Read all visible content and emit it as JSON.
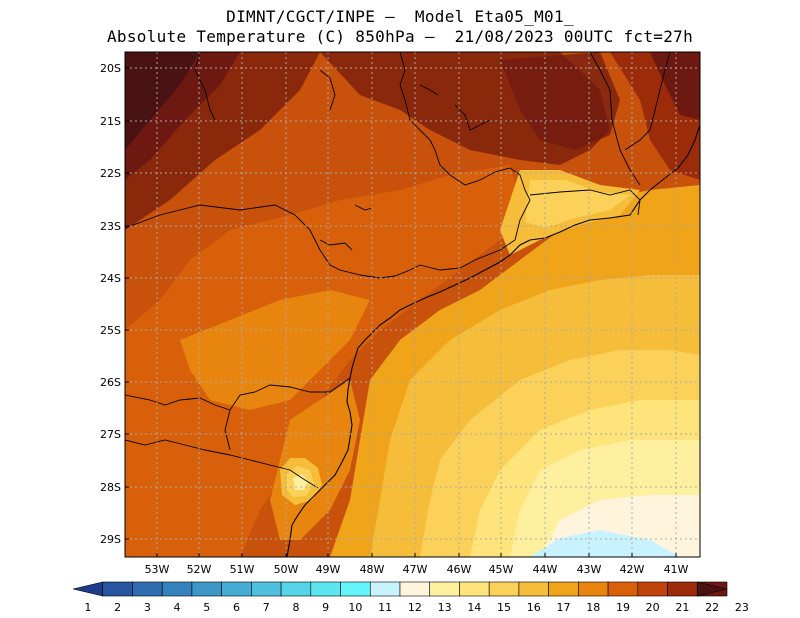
{
  "header": {
    "line1": "DIMNT/CGCT/INPE –  Model Eta05_M01_",
    "line2": "Absolute Temperature (C) 850hPa –  21/08/2023 00UTC fct=27h"
  },
  "axes": {
    "lat_labels": [
      "20S",
      "21S",
      "22S",
      "23S",
      "24S",
      "25S",
      "26S",
      "27S",
      "28S",
      "29S"
    ],
    "lon_labels": [
      "53W",
      "52W",
      "51W",
      "50W",
      "49W",
      "48W",
      "47W",
      "46W",
      "45W",
      "44W",
      "43W",
      "42W",
      "41W"
    ]
  },
  "colorbar": {
    "labels": [
      "1",
      "2",
      "3",
      "4",
      "5",
      "6",
      "7",
      "8",
      "9",
      "10",
      "11",
      "12",
      "13",
      "14",
      "15",
      "16",
      "17",
      "18",
      "19",
      "20",
      "21",
      "22",
      "23"
    ],
    "colors": [
      "#1e3c8c",
      "#27559f",
      "#2f6cb0",
      "#3682be",
      "#3d97c9",
      "#45acd3",
      "#4fc1de",
      "#56d4e8",
      "#5ce6f0",
      "#62f5fa",
      "#c9f2ff",
      "#fff5dc",
      "#fff0a0",
      "#ffe47c",
      "#fcd159",
      "#f5bd3a",
      "#efa419",
      "#e8850f",
      "#d8600a",
      "#bf430a",
      "#9c2b0a",
      "#6e1812",
      "#4a1212"
    ]
  },
  "field": {
    "type": "filled-contour",
    "variable": "Absolute Temperature (C) 850hPa",
    "region": "SE Brazil",
    "lat_range": [
      -29.4,
      -19.9
    ],
    "lon_range": [
      -53.8,
      -40.6
    ]
  }
}
